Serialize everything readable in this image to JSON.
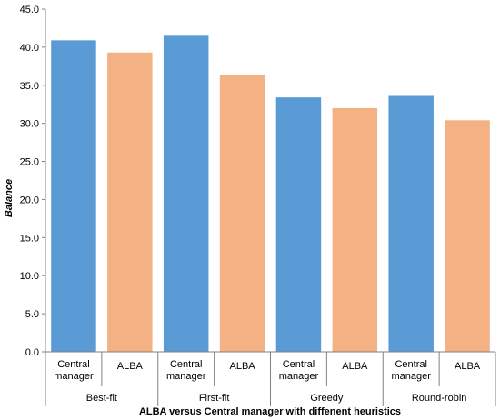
{
  "chart_data": {
    "type": "bar",
    "xlabel": "ALBA versus Central manager with diffenent heuristics",
    "ylabel": "Balance",
    "ylim": [
      0,
      45
    ],
    "ytick_labels": [
      "0.0",
      "5.0",
      "10.0",
      "15.0",
      "20.0",
      "25.0",
      "30.0",
      "35.0",
      "40.0",
      "45.0"
    ],
    "grid": false,
    "groups": [
      {
        "label": "Best-fit",
        "bars": [
          {
            "label_lines": [
              "Central",
              "manager"
            ],
            "value": 40.9,
            "color": "#5b9bd5"
          },
          {
            "label_lines": [
              "ALBA"
            ],
            "value": 39.3,
            "color": "#f4b183"
          }
        ]
      },
      {
        "label": "First-fit",
        "bars": [
          {
            "label_lines": [
              "Central",
              "manager"
            ],
            "value": 41.5,
            "color": "#5b9bd5"
          },
          {
            "label_lines": [
              "ALBA"
            ],
            "value": 36.4,
            "color": "#f4b183"
          }
        ]
      },
      {
        "label": "Greedy",
        "bars": [
          {
            "label_lines": [
              "Central",
              "manager"
            ],
            "value": 33.4,
            "color": "#5b9bd5"
          },
          {
            "label_lines": [
              "ALBA"
            ],
            "value": 32.0,
            "color": "#f4b183"
          }
        ]
      },
      {
        "label": "Round-robin",
        "bars": [
          {
            "label_lines": [
              "Central",
              "manager"
            ],
            "value": 33.6,
            "color": "#5b9bd5"
          },
          {
            "label_lines": [
              "ALBA"
            ],
            "value": 30.4,
            "color": "#f4b183"
          }
        ]
      }
    ]
  }
}
